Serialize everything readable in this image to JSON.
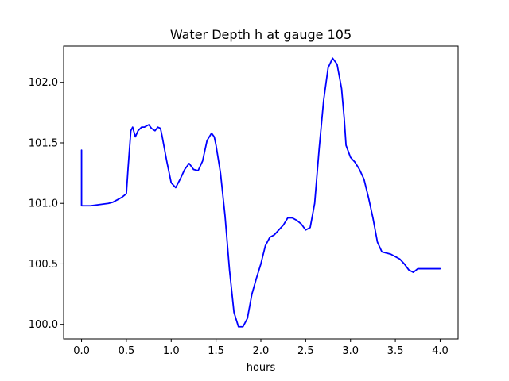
{
  "chart_data": {
    "type": "line",
    "title": "Water Depth h at gauge 105",
    "xlabel": "hours",
    "ylabel": "",
    "xlim": [
      -0.2,
      4.2
    ],
    "ylim": [
      99.88,
      102.3
    ],
    "grid": false,
    "x_ticks": [
      "0.0",
      "0.5",
      "1.0",
      "1.5",
      "2.0",
      "2.5",
      "3.0",
      "3.5",
      "4.0"
    ],
    "y_ticks": [
      "100.0",
      "100.5",
      "101.0",
      "101.5",
      "102.0"
    ],
    "series": [
      {
        "color": "#0000ff",
        "x": [
          0.0,
          0.0,
          0.05,
          0.1,
          0.15,
          0.2,
          0.25,
          0.3,
          0.35,
          0.4,
          0.45,
          0.5,
          0.52,
          0.55,
          0.57,
          0.6,
          0.63,
          0.67,
          0.7,
          0.75,
          0.78,
          0.82,
          0.85,
          0.88,
          0.9,
          0.95,
          1.0,
          1.05,
          1.1,
          1.15,
          1.2,
          1.25,
          1.3,
          1.35,
          1.4,
          1.45,
          1.48,
          1.5,
          1.55,
          1.6,
          1.65,
          1.7,
          1.75,
          1.8,
          1.85,
          1.9,
          1.95,
          2.0,
          2.05,
          2.1,
          2.15,
          2.2,
          2.25,
          2.3,
          2.35,
          2.4,
          2.45,
          2.5,
          2.55,
          2.6,
          2.65,
          2.7,
          2.75,
          2.8,
          2.85,
          2.9,
          2.93,
          2.95,
          3.0,
          3.05,
          3.1,
          3.15,
          3.2,
          3.25,
          3.3,
          3.35,
          3.4,
          3.45,
          3.5,
          3.55,
          3.6,
          3.65,
          3.7,
          3.75,
          3.8,
          3.85,
          3.9,
          3.95,
          4.0
        ],
        "y": [
          101.44,
          100.98,
          100.98,
          100.98,
          100.985,
          100.99,
          100.995,
          101.0,
          101.01,
          101.03,
          101.05,
          101.08,
          101.3,
          101.6,
          101.63,
          101.55,
          101.6,
          101.63,
          101.63,
          101.65,
          101.62,
          101.6,
          101.63,
          101.62,
          101.55,
          101.35,
          101.17,
          101.13,
          101.2,
          101.28,
          101.33,
          101.28,
          101.27,
          101.35,
          101.52,
          101.58,
          101.55,
          101.48,
          101.25,
          100.9,
          100.45,
          100.1,
          99.98,
          99.98,
          100.05,
          100.25,
          100.38,
          100.5,
          100.65,
          100.72,
          100.74,
          100.78,
          100.82,
          100.88,
          100.88,
          100.86,
          100.83,
          100.78,
          100.8,
          101.0,
          101.45,
          101.85,
          102.12,
          102.2,
          102.15,
          101.95,
          101.7,
          101.48,
          101.38,
          101.34,
          101.28,
          101.2,
          101.05,
          100.88,
          100.68,
          100.6,
          100.59,
          100.58,
          100.56,
          100.54,
          100.5,
          100.45,
          100.43,
          100.46,
          100.46,
          100.46,
          100.46,
          100.46,
          100.46
        ]
      }
    ]
  }
}
